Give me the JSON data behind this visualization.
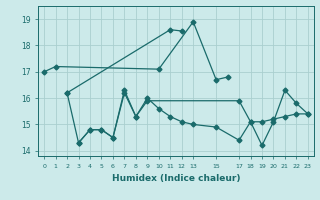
{
  "title": "",
  "xlabel": "Humidex (Indice chaleur)",
  "ylabel": "",
  "background_color": "#cceaea",
  "grid_color": "#aacfcf",
  "line_color": "#1a6b6b",
  "line1_x": [
    0,
    1,
    10,
    13,
    15,
    16
  ],
  "line1_y": [
    17.0,
    17.2,
    17.1,
    18.9,
    16.7,
    16.8
  ],
  "line2_x": [
    2,
    11,
    12
  ],
  "line2_y": [
    16.2,
    18.6,
    18.55
  ],
  "line3_x": [
    3,
    4,
    5,
    6,
    7,
    8,
    9,
    17,
    18,
    19,
    20,
    21,
    22,
    23
  ],
  "line3_y": [
    14.3,
    14.8,
    14.8,
    14.5,
    16.3,
    15.3,
    15.9,
    15.9,
    15.1,
    14.2,
    15.1,
    16.3,
    15.8,
    15.4
  ],
  "line4_x": [
    2,
    3,
    4,
    5,
    6,
    7,
    8,
    9,
    10,
    11,
    12,
    13,
    15,
    17,
    18,
    19,
    20,
    21,
    22,
    23
  ],
  "line4_y": [
    16.2,
    14.3,
    14.8,
    14.8,
    14.5,
    16.2,
    15.3,
    16.0,
    15.6,
    15.3,
    15.1,
    15.0,
    14.9,
    14.4,
    15.1,
    15.1,
    15.2,
    15.3,
    15.4,
    15.4
  ],
  "xlim": [
    -0.5,
    23.5
  ],
  "ylim": [
    13.8,
    19.5
  ],
  "yticks": [
    14,
    15,
    16,
    17,
    18,
    19
  ],
  "xticks": [
    0,
    1,
    2,
    3,
    4,
    5,
    6,
    7,
    8,
    9,
    10,
    11,
    12,
    13,
    15,
    17,
    18,
    19,
    20,
    21,
    22,
    23
  ],
  "xtick_labels": [
    "0",
    "1",
    "2",
    "3",
    "4",
    "5",
    "6",
    "7",
    "8",
    "9",
    "10",
    "11",
    "12",
    "13",
    "15",
    "17",
    "18",
    "19",
    "20",
    "21",
    "22",
    "23"
  ]
}
